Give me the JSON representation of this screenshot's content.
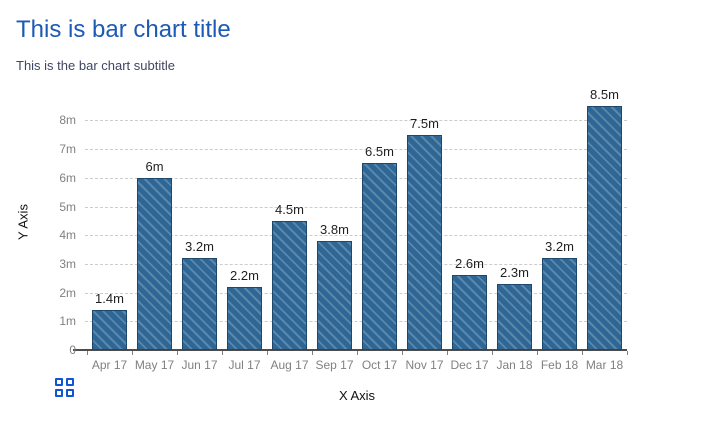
{
  "chart_data": {
    "type": "bar",
    "title": "This is bar chart title",
    "subtitle": "This is the bar chart subtitle",
    "categories": [
      "Apr 17",
      "May 17",
      "Jun 17",
      "Jul 17",
      "Aug 17",
      "Sep 17",
      "Oct 17",
      "Nov 17",
      "Dec 17",
      "Jan 18",
      "Feb 18",
      "Mar 18"
    ],
    "values": [
      1.4,
      6,
      3.2,
      2.2,
      4.5,
      3.8,
      6.5,
      7.5,
      2.6,
      2.3,
      3.2,
      8.5
    ],
    "value_labels": [
      "1.4m",
      "6m",
      "3.2m",
      "2.2m",
      "4.5m",
      "3.8m",
      "6.5m",
      "7.5m",
      "2.6m",
      "2.3m",
      "3.2m",
      "8.5m"
    ],
    "xlabel": "X Axis",
    "ylabel": "Y Axis",
    "ylim": [
      0,
      8.9
    ],
    "yticks": [
      0,
      1,
      2,
      3,
      4,
      5,
      6,
      7,
      8
    ],
    "ytick_labels": [
      "0",
      "1m",
      "2m",
      "3m",
      "4m",
      "5m",
      "6m",
      "7m",
      "8m"
    ],
    "grid": "horizontal-dashed",
    "legend": "none",
    "bar_hatch": "diagonal-backslash"
  },
  "icons": {
    "menu": "grid-menu-icon"
  },
  "colors": {
    "title": "#1d5ab4",
    "subtitle": "#3f4760",
    "bar_fill": "#2e6696",
    "bar_hatch": "#5a87aa",
    "bar_border": "#1d476b",
    "gridline": "#cccccc",
    "axis_line": "#4d4d4d",
    "tick_label": "#808080",
    "axis_title": "#111111",
    "value_label": "#1f1f1f",
    "icon_blue": "#1155d4"
  }
}
